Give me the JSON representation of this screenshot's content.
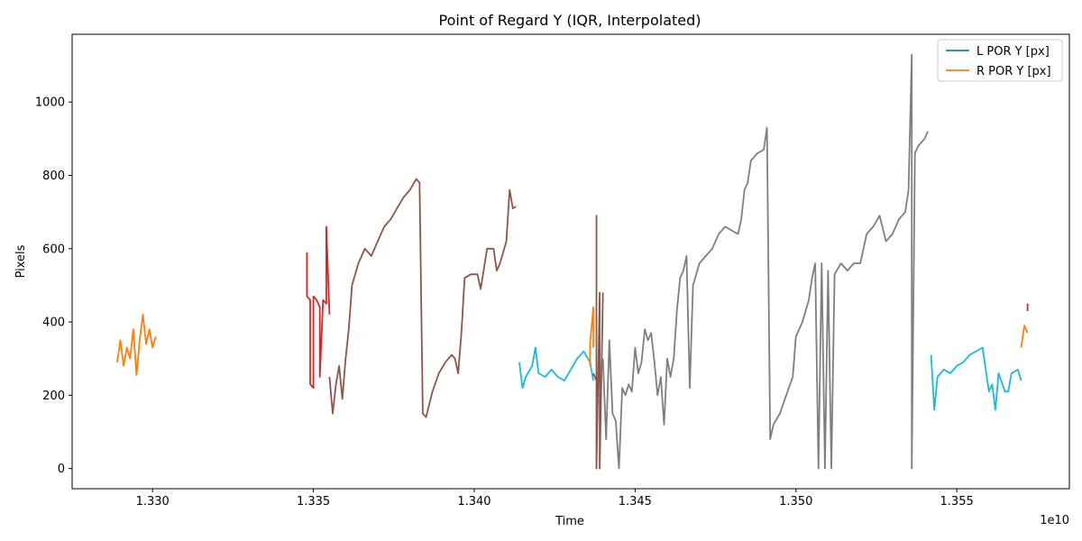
{
  "chart_data": {
    "type": "line",
    "title": "Point of Regard Y (IQR, Interpolated)",
    "xlabel": "Time",
    "ylabel": "Pixels",
    "x_offset_label": "1e10",
    "xlim": [
      1.3275,
      1.3585
    ],
    "ylim": [
      -55,
      1185
    ],
    "xticks": [
      1.33,
      1.335,
      1.34,
      1.345,
      1.35,
      1.355
    ],
    "xtick_labels": [
      "1.330",
      "1.335",
      "1.340",
      "1.345",
      "1.350",
      "1.355"
    ],
    "yticks": [
      0,
      200,
      400,
      600,
      800,
      1000
    ],
    "ytick_labels": [
      "0",
      "200",
      "400",
      "600",
      "800",
      "1000"
    ],
    "grid": false,
    "legend_position": "top-right",
    "legend": [
      {
        "label": "L POR Y [px]",
        "color": "#1f77b4"
      },
      {
        "label": "R POR Y [px]",
        "color": "#ff7f0e"
      }
    ],
    "segments": [
      {
        "color": "#ff7f0e",
        "points": [
          [
            1.3289,
            290
          ],
          [
            1.329,
            350
          ],
          [
            1.3291,
            280
          ],
          [
            1.3292,
            330
          ],
          [
            1.3293,
            300
          ],
          [
            1.3294,
            380
          ],
          [
            1.3295,
            255
          ],
          [
            1.3296,
            350
          ],
          [
            1.3297,
            420
          ],
          [
            1.3298,
            340
          ],
          [
            1.3299,
            380
          ],
          [
            1.33,
            330
          ],
          [
            1.3301,
            360
          ]
        ]
      },
      {
        "color": "#d62728",
        "points": [
          [
            1.3348,
            590
          ],
          [
            1.3348,
            470
          ],
          [
            1.3349,
            460
          ],
          [
            1.3349,
            230
          ],
          [
            1.335,
            220
          ],
          [
            1.335,
            470
          ],
          [
            1.3351,
            460
          ],
          [
            1.3352,
            440
          ],
          [
            1.3352,
            250
          ],
          [
            1.3353,
            460
          ],
          [
            1.3354,
            450
          ],
          [
            1.3354,
            660
          ],
          [
            1.3355,
            420
          ]
        ]
      },
      {
        "color": "#8c564b",
        "points": [
          [
            1.3355,
            250
          ],
          [
            1.3356,
            150
          ],
          [
            1.3357,
            230
          ],
          [
            1.3358,
            280
          ],
          [
            1.3359,
            190
          ],
          [
            1.336,
            300
          ],
          [
            1.3361,
            380
          ],
          [
            1.3362,
            500
          ],
          [
            1.3364,
            560
          ],
          [
            1.3366,
            600
          ],
          [
            1.3368,
            580
          ],
          [
            1.337,
            620
          ],
          [
            1.3372,
            660
          ],
          [
            1.3374,
            680
          ],
          [
            1.3376,
            710
          ],
          [
            1.3378,
            740
          ],
          [
            1.338,
            760
          ],
          [
            1.3382,
            790
          ],
          [
            1.3383,
            780
          ],
          [
            1.3384,
            150
          ],
          [
            1.3385,
            140
          ],
          [
            1.3387,
            210
          ],
          [
            1.3389,
            260
          ],
          [
            1.3391,
            290
          ],
          [
            1.3393,
            310
          ],
          [
            1.3394,
            300
          ],
          [
            1.3395,
            260
          ],
          [
            1.3396,
            370
          ],
          [
            1.3397,
            520
          ],
          [
            1.3399,
            530
          ],
          [
            1.3401,
            530
          ],
          [
            1.3402,
            490
          ],
          [
            1.3404,
            600
          ],
          [
            1.3406,
            600
          ],
          [
            1.3407,
            540
          ],
          [
            1.3408,
            560
          ],
          [
            1.341,
            620
          ],
          [
            1.3411,
            760
          ],
          [
            1.3412,
            710
          ],
          [
            1.3413,
            715
          ]
        ]
      },
      {
        "color": "#17becf",
        "points": [
          [
            1.3414,
            290
          ],
          [
            1.3415,
            220
          ],
          [
            1.3416,
            250
          ],
          [
            1.3418,
            280
          ],
          [
            1.3419,
            330
          ],
          [
            1.342,
            260
          ],
          [
            1.3422,
            250
          ],
          [
            1.3424,
            270
          ],
          [
            1.3426,
            250
          ],
          [
            1.3428,
            240
          ],
          [
            1.343,
            270
          ],
          [
            1.3432,
            300
          ],
          [
            1.3434,
            320
          ],
          [
            1.3436,
            290
          ],
          [
            1.3437,
            240
          ]
        ]
      },
      {
        "color": "#ff7f0e",
        "points": [
          [
            1.3436,
            280
          ],
          [
            1.3436,
            340
          ],
          [
            1.3437,
            440
          ],
          [
            1.3437,
            330
          ]
        ]
      },
      {
        "color": "#8c564b",
        "points": [
          [
            1.3437,
            260
          ],
          [
            1.3438,
            240
          ],
          [
            1.3438,
            690
          ],
          [
            1.3438,
            0
          ],
          [
            1.3439,
            480
          ],
          [
            1.3439,
            0
          ],
          [
            1.344,
            480
          ]
        ]
      },
      {
        "color": "#7f7f7f",
        "points": [
          [
            1.344,
            300
          ],
          [
            1.3441,
            80
          ],
          [
            1.3442,
            350
          ],
          [
            1.3443,
            150
          ],
          [
            1.3444,
            130
          ],
          [
            1.3445,
            0
          ],
          [
            1.3446,
            220
          ],
          [
            1.3447,
            200
          ],
          [
            1.3448,
            230
          ],
          [
            1.3449,
            210
          ],
          [
            1.345,
            330
          ],
          [
            1.3451,
            260
          ],
          [
            1.3452,
            290
          ],
          [
            1.3453,
            380
          ],
          [
            1.3454,
            350
          ],
          [
            1.3455,
            370
          ],
          [
            1.3456,
            290
          ],
          [
            1.3457,
            200
          ],
          [
            1.3458,
            250
          ],
          [
            1.3459,
            120
          ],
          [
            1.346,
            300
          ],
          [
            1.3461,
            250
          ],
          [
            1.3462,
            300
          ],
          [
            1.3463,
            430
          ],
          [
            1.3464,
            520
          ],
          [
            1.3465,
            540
          ],
          [
            1.3466,
            580
          ],
          [
            1.3467,
            220
          ],
          [
            1.3468,
            500
          ],
          [
            1.347,
            560
          ],
          [
            1.3472,
            580
          ],
          [
            1.3474,
            600
          ],
          [
            1.3476,
            640
          ],
          [
            1.3478,
            660
          ],
          [
            1.348,
            650
          ],
          [
            1.3482,
            640
          ],
          [
            1.3483,
            680
          ],
          [
            1.3484,
            760
          ],
          [
            1.3485,
            780
          ],
          [
            1.3486,
            840
          ],
          [
            1.3488,
            860
          ],
          [
            1.349,
            870
          ],
          [
            1.3491,
            930
          ],
          [
            1.3492,
            80
          ],
          [
            1.3493,
            120
          ],
          [
            1.3495,
            150
          ],
          [
            1.3497,
            200
          ],
          [
            1.3499,
            250
          ],
          [
            1.35,
            360
          ],
          [
            1.3502,
            400
          ],
          [
            1.3504,
            460
          ],
          [
            1.3505,
            520
          ],
          [
            1.3506,
            560
          ],
          [
            1.3507,
            0
          ],
          [
            1.3508,
            560
          ],
          [
            1.3509,
            0
          ],
          [
            1.351,
            540
          ],
          [
            1.3511,
            0
          ],
          [
            1.3512,
            530
          ],
          [
            1.3514,
            560
          ],
          [
            1.3516,
            540
          ],
          [
            1.3518,
            560
          ],
          [
            1.352,
            560
          ],
          [
            1.3522,
            640
          ],
          [
            1.3524,
            660
          ],
          [
            1.3526,
            690
          ],
          [
            1.3528,
            620
          ],
          [
            1.353,
            640
          ],
          [
            1.3532,
            680
          ],
          [
            1.3534,
            700
          ],
          [
            1.3535,
            760
          ],
          [
            1.3536,
            1130
          ],
          [
            1.3536,
            0
          ],
          [
            1.3537,
            860
          ],
          [
            1.3538,
            880
          ],
          [
            1.354,
            900
          ],
          [
            1.3541,
            920
          ]
        ]
      },
      {
        "color": "#17becf",
        "points": [
          [
            1.3542,
            310
          ],
          [
            1.3543,
            160
          ],
          [
            1.3544,
            250
          ],
          [
            1.3546,
            270
          ],
          [
            1.3548,
            260
          ],
          [
            1.355,
            280
          ],
          [
            1.3552,
            290
          ],
          [
            1.3554,
            310
          ],
          [
            1.3556,
            320
          ],
          [
            1.3558,
            330
          ],
          [
            1.356,
            210
          ],
          [
            1.3561,
            230
          ],
          [
            1.3562,
            160
          ],
          [
            1.3563,
            260
          ],
          [
            1.3565,
            210
          ],
          [
            1.3566,
            210
          ],
          [
            1.3567,
            260
          ],
          [
            1.3569,
            270
          ],
          [
            1.357,
            240
          ]
        ]
      },
      {
        "color": "#ff7f0e",
        "points": [
          [
            1.357,
            330
          ],
          [
            1.3571,
            390
          ],
          [
            1.3572,
            370
          ]
        ]
      },
      {
        "color": "#d62728",
        "points": [
          [
            1.3572,
            430
          ],
          [
            1.3572,
            450
          ]
        ]
      }
    ]
  }
}
